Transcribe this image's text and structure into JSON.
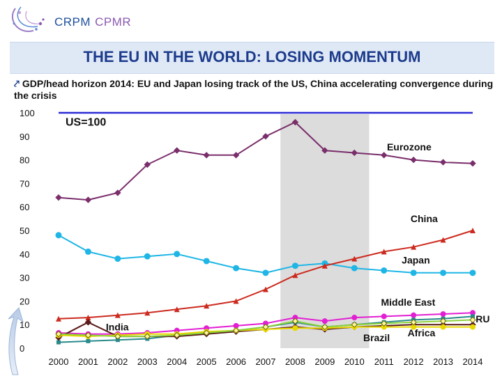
{
  "header": {
    "logo_text_1": "CRPM",
    "logo_text_2": "CPMR",
    "title": "THE EU IN THE WORLD: LOSING MOMENTUM",
    "subtitle": "GDP/head horizon 2014: EU and Japan losing track of the US, China accelerating convergence during the crisis"
  },
  "chart_data": {
    "type": "line",
    "annotation": "US=100",
    "x": [
      "2000",
      "2001",
      "2002",
      "2003",
      "2004",
      "2005",
      "2006",
      "2007",
      "2008",
      "2009",
      "2010",
      "2011",
      "2012",
      "2013",
      "2014"
    ],
    "ylim": [
      0,
      100
    ],
    "yticks": [
      0,
      10,
      20,
      30,
      40,
      50,
      60,
      70,
      80,
      90,
      100
    ],
    "grid": false,
    "highlight_range": [
      "2008",
      "2010"
    ],
    "series": [
      {
        "name": "US",
        "color": "#2b2bd6",
        "values": [
          100,
          100,
          100,
          100,
          100,
          100,
          100,
          100,
          100,
          100,
          100,
          100,
          100,
          100,
          100
        ]
      },
      {
        "name": "Eurozone",
        "color": "#7a2e6b",
        "values": [
          64,
          63,
          66,
          78,
          84,
          82,
          82,
          90,
          96,
          84,
          83,
          82,
          80,
          79,
          78.5
        ]
      },
      {
        "name": "Japan",
        "color": "#1fb6e6",
        "values": [
          48,
          41,
          38,
          39,
          40,
          37,
          34,
          32,
          35,
          36,
          34,
          33,
          32,
          32,
          32
        ]
      },
      {
        "name": "China",
        "color": "#cc2a1e",
        "values": [
          12.5,
          13,
          14,
          15,
          16.5,
          18,
          20,
          25,
          31,
          35,
          38,
          41,
          43,
          46,
          50
        ]
      },
      {
        "name": "Middle East",
        "color": "#e21fd3",
        "values": [
          6.5,
          6,
          6,
          6.5,
          7.5,
          8.5,
          9.5,
          10.5,
          13,
          11.5,
          13,
          13.5,
          14,
          14.5,
          15
        ]
      },
      {
        "name": "RU",
        "color": "#2a8a8a",
        "values": [
          2.5,
          3,
          3.5,
          4,
          5.5,
          6.5,
          7.5,
          9,
          11,
          9,
          10,
          11,
          12,
          12.5,
          13.5
        ]
      },
      {
        "name": "India",
        "color": "#5a1a1a",
        "values": [
          4.5,
          11,
          5,
          5,
          5,
          6,
          7,
          8,
          9,
          8,
          9,
          9.5,
          10,
          10,
          10
        ]
      },
      {
        "name": "Africa",
        "color": "#e8d800",
        "values": [
          5.5,
          5,
          5.5,
          6,
          6,
          7,
          7.5,
          8,
          8.5,
          8.5,
          9,
          9,
          9,
          9,
          9
        ]
      },
      {
        "name": "Brazil",
        "color": "#8cd23a",
        "values": [
          6,
          5.5,
          5,
          5,
          5.5,
          6.5,
          7.5,
          9,
          11.5,
          9,
          10,
          10.5,
          11,
          11.5,
          12
        ]
      }
    ],
    "labels": [
      "Eurozone",
      "China",
      "Japan",
      "Middle East",
      "RU",
      "India",
      "Africa",
      "Brazil"
    ]
  }
}
